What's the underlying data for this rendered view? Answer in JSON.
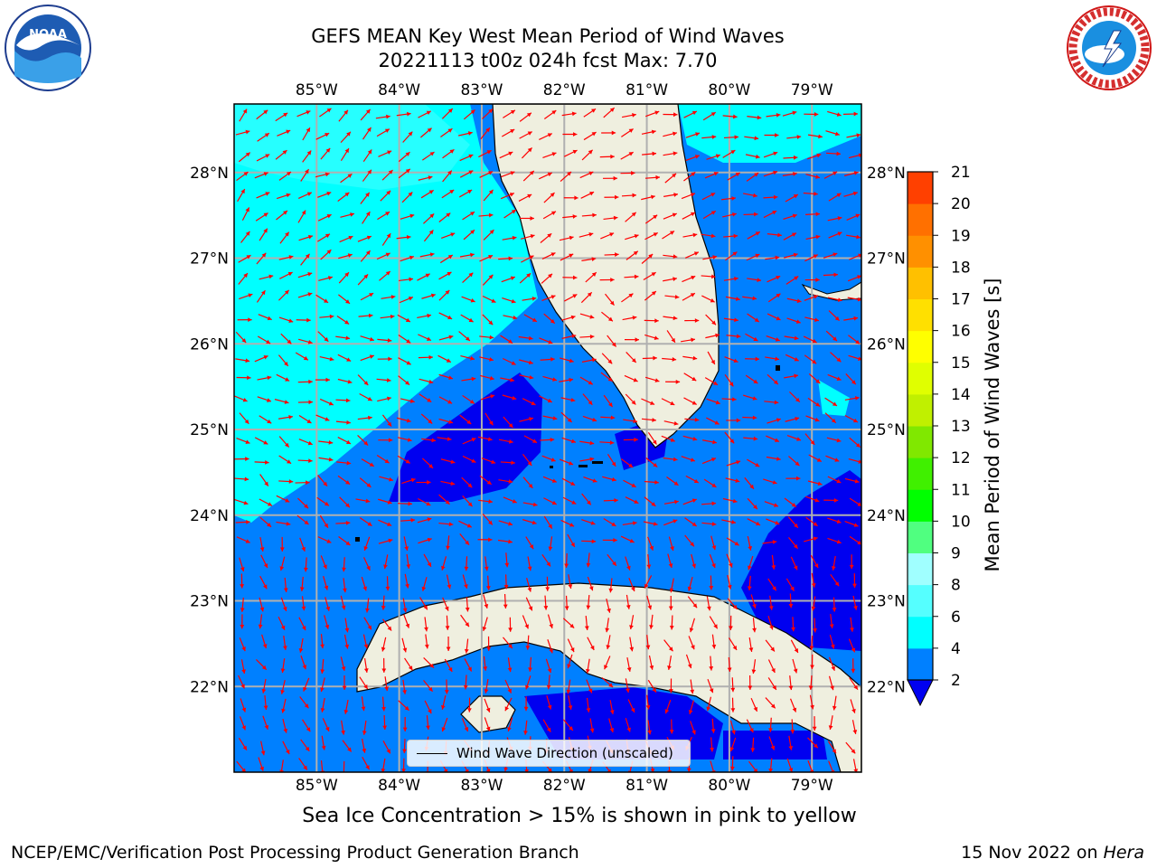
{
  "title": {
    "line1": "GEFS MEAN Key West Mean Period of Wind Waves",
    "line2": "20221113 t00z 024h fcst   Max: 7.70"
  },
  "map": {
    "lon_range": [
      -86.0,
      -78.4
    ],
    "lat_range": [
      21.0,
      28.8
    ],
    "lon_ticks": [
      "85°W",
      "84°W",
      "83°W",
      "82°W",
      "81°W",
      "80°W",
      "79°W"
    ],
    "lat_ticks": [
      "28°N",
      "27°N",
      "26°N",
      "25°N",
      "24°N",
      "23°N",
      "22°N"
    ],
    "colors": {
      "period_2_4": "#0080ff",
      "period_lt_2": "#0000f0",
      "period_4_6": "#00ffff",
      "period_6_8": "#55ffff",
      "land": "#efefdf",
      "arrows": "#ff0000",
      "grid": "#b0b0b0"
    }
  },
  "legend": {
    "label": "Wind Wave Direction (unscaled)"
  },
  "colorbar": {
    "title": "Mean Period of Wind Waves [s]",
    "ticks": [
      "2",
      "4",
      "6",
      "8",
      "9",
      "10",
      "11",
      "12",
      "13",
      "14",
      "15",
      "16",
      "17",
      "18",
      "19",
      "20",
      "21"
    ],
    "colors": [
      "#0080ff",
      "#00ffff",
      "#55ffff",
      "#a0ffff",
      "#50ff80",
      "#00ff00",
      "#40f000",
      "#80e800",
      "#c0f000",
      "#e0ff00",
      "#ffff00",
      "#ffe000",
      "#ffc000",
      "#ff9000",
      "#ff7000",
      "#ff4000",
      "#ff0000"
    ]
  },
  "caption": "Sea Ice Concentration > 15% is shown in pink to yellow",
  "credit_left": "NCEP/EMC/Verification Post Processing Product Generation Branch",
  "credit_right_text": "15 Nov 2022 on",
  "credit_right_host": "Hera",
  "logos": {
    "left": "NOAA",
    "right_text": "NATIONAL WEATHER SERVICE"
  }
}
